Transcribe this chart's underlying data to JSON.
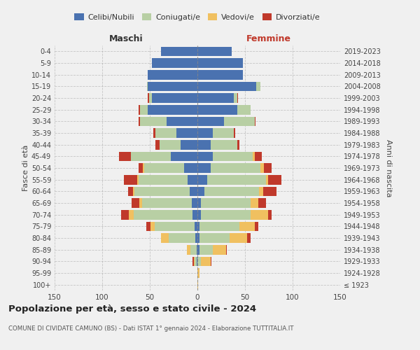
{
  "age_groups": [
    "100+",
    "95-99",
    "90-94",
    "85-89",
    "80-84",
    "75-79",
    "70-74",
    "65-69",
    "60-64",
    "55-59",
    "50-54",
    "45-49",
    "40-44",
    "35-39",
    "30-34",
    "25-29",
    "20-24",
    "15-19",
    "10-14",
    "5-9",
    "0-4"
  ],
  "birth_years": [
    "≤ 1923",
    "1924-1928",
    "1929-1933",
    "1934-1938",
    "1939-1943",
    "1944-1948",
    "1949-1953",
    "1954-1958",
    "1959-1963",
    "1964-1968",
    "1969-1973",
    "1974-1978",
    "1979-1983",
    "1984-1988",
    "1989-1993",
    "1994-1998",
    "1999-2003",
    "2004-2008",
    "2009-2013",
    "2014-2018",
    "2019-2023"
  ],
  "colors": {
    "celibi": "#4a72b0",
    "coniugati": "#b8cfa4",
    "vedovi": "#f0c060",
    "divorziati": "#c0392b"
  },
  "m_cel": [
    0,
    0,
    1,
    1,
    2,
    3,
    5,
    6,
    8,
    10,
    14,
    28,
    18,
    22,
    32,
    52,
    48,
    52,
    52,
    48,
    38
  ],
  "m_con": [
    0,
    0,
    2,
    6,
    28,
    42,
    62,
    52,
    58,
    52,
    42,
    42,
    22,
    22,
    28,
    8,
    3,
    1,
    0,
    0,
    0
  ],
  "m_ved": [
    0,
    0,
    1,
    4,
    8,
    4,
    5,
    3,
    2,
    1,
    1,
    0,
    0,
    0,
    0,
    0,
    0,
    0,
    0,
    0,
    0
  ],
  "m_div": [
    0,
    0,
    1,
    0,
    0,
    5,
    8,
    8,
    5,
    14,
    5,
    12,
    4,
    2,
    2,
    2,
    1,
    0,
    0,
    0,
    0
  ],
  "f_cel": [
    0,
    0,
    0,
    2,
    2,
    2,
    4,
    4,
    7,
    10,
    14,
    16,
    14,
    16,
    28,
    42,
    38,
    62,
    48,
    48,
    36
  ],
  "f_con": [
    0,
    0,
    4,
    14,
    32,
    42,
    52,
    52,
    58,
    62,
    52,
    42,
    28,
    22,
    32,
    14,
    4,
    4,
    0,
    0,
    0
  ],
  "f_ved": [
    1,
    2,
    10,
    14,
    18,
    16,
    18,
    8,
    4,
    2,
    4,
    2,
    0,
    0,
    0,
    0,
    0,
    0,
    0,
    0,
    0
  ],
  "f_div": [
    0,
    0,
    1,
    1,
    4,
    4,
    4,
    8,
    14,
    14,
    8,
    8,
    2,
    2,
    1,
    0,
    1,
    0,
    0,
    0,
    0
  ],
  "title": "Popolazione per età, sesso e stato civile - 2024",
  "subtitle": "COMUNE DI CIVIDATE CAMUNO (BS) - Dati ISTAT 1° gennaio 2024 - Elaborazione TUTTITALIA.IT",
  "label_maschi": "Maschi",
  "label_femmine": "Femmine",
  "ylabel_left": "Fasce di età",
  "ylabel_right": "Anni di nascita",
  "xlim": 150,
  "legend_labels": [
    "Celibi/Nubili",
    "Coniugati/e",
    "Vedovi/e",
    "Divorziati/e"
  ],
  "bg_color": "#f0f0f0"
}
